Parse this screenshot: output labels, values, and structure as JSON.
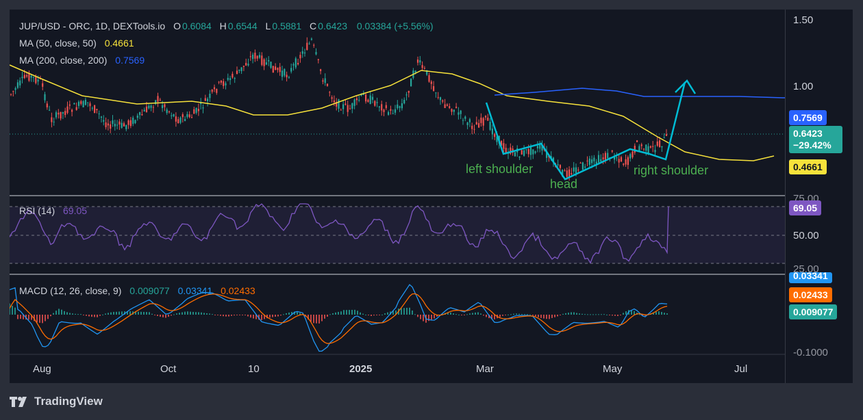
{
  "header": {
    "symbol": "JUP/USD - ORC, 1D, DEXTools.io",
    "o_label": "O",
    "o_value": "0.6084",
    "h_label": "H",
    "h_value": "0.6544",
    "l_label": "L",
    "l_value": "0.5881",
    "c_label": "C",
    "c_value": "0.6423",
    "change": "0.03384 (+5.56%)"
  },
  "indicators": {
    "ma50_label": "MA (50, close, 50)",
    "ma50_value": "0.4661",
    "ma200_label": "MA (200, close, 200)",
    "ma200_value": "0.7569",
    "rsi_label": "RSI (14)",
    "rsi_value": "69.05",
    "macd_label": "MACD (12, 26, close, 9)",
    "macd_hist": "0.009077",
    "macd_line": "0.03341",
    "macd_signal": "0.02433"
  },
  "price_tags": {
    "ma200": "0.7569",
    "last_price": "0.6423",
    "last_change": "−29.42%",
    "ma50": "0.4661",
    "rsi": "69.05",
    "macd_line": "0.03341",
    "macd_signal": "0.02433",
    "macd_hist": "0.009077"
  },
  "axes": {
    "price_ticks": [
      "1.50",
      "1.00"
    ],
    "rsi_ticks": [
      "75.00",
      "50.00",
      "25.00"
    ],
    "macd_ticks": [
      "-0.1000"
    ],
    "time_ticks": [
      "Aug",
      "Oct",
      "10",
      "2025",
      "Mar",
      "May",
      "Jul"
    ]
  },
  "annotations": {
    "left_shoulder": "left shoulder",
    "head": "head",
    "right_shoulder": "right shoulder"
  },
  "branding": {
    "name": "TradingView"
  },
  "colors": {
    "up": "#26a69a",
    "down": "#ef5350",
    "ma50": "#f7e23b",
    "ma200": "#2962ff",
    "rsi": "#7e57c2",
    "macd": "#2196f3",
    "signal": "#ff6d00",
    "pattern": "#00bcd4",
    "label_green": "#4caf50"
  },
  "chart_data": [
    {
      "type": "candlestick",
      "title": "JUP/USD - ORC, 1D, DEXTools.io",
      "x_range": [
        "2024-07",
        "2025-07"
      ],
      "ylim": [
        0.35,
        1.55
      ],
      "y_scale": "log",
      "last": {
        "open": 0.6084,
        "high": 0.6544,
        "low": 0.5881,
        "close": 0.6423
      },
      "series": [
        {
          "name": "MA (50, close, 50)",
          "last": 0.4661
        },
        {
          "name": "MA (200, close, 200)",
          "last": 0.7569
        }
      ],
      "pattern": [
        "left shoulder",
        "head",
        "right shoulder"
      ]
    },
    {
      "type": "line",
      "title": "RSI (14)",
      "ylim": [
        20,
        80
      ],
      "bands": [
        30,
        50,
        70
      ],
      "last": 69.05
    },
    {
      "type": "bar",
      "title": "MACD (12, 26, close, 9)",
      "last": {
        "macd": 0.03341,
        "signal": 0.02433,
        "histogram": 0.009077
      }
    }
  ]
}
